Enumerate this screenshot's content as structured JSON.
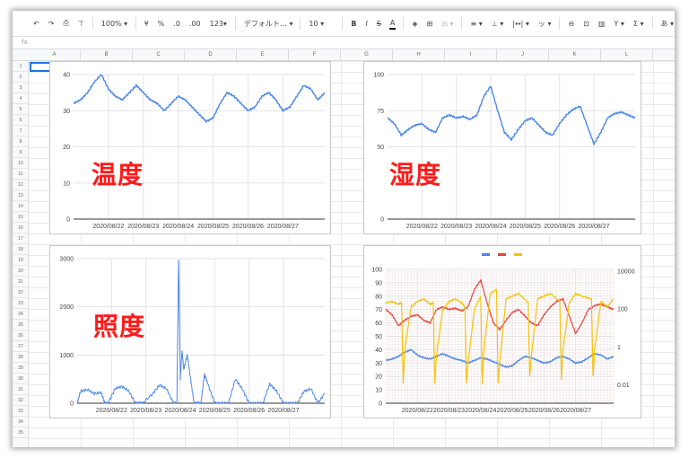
{
  "toolbar": {
    "items": [
      {
        "name": "undo-icon",
        "glyph": "↶"
      },
      {
        "name": "redo-icon",
        "glyph": "↷"
      },
      {
        "name": "print-icon",
        "glyph": "⎙"
      },
      {
        "name": "paint-format-icon",
        "glyph": "⊤"
      }
    ],
    "zoom": "100% ▾",
    "currency": "¥",
    "percent": "%",
    "decimal_dec": ".0",
    "decimal_inc": ".00",
    "number_format": "123▾",
    "font": "デフォルト… ▾",
    "font_size": "10 ▾",
    "bold": "B",
    "italic": "I",
    "strike": "S",
    "text_color": "A",
    "fill_icon": "◈",
    "borders_icon": "⊞",
    "merge_icon": "⊟ ▾",
    "align_h": "≡ ▾",
    "align_v": "⊥ ▾",
    "wrap": "|↔| ▾",
    "rotate": "ッ ▾",
    "link_icon": "⊖",
    "comment_icon": "⊡",
    "chart_icon": "▥",
    "filter_icon": "Y ▾",
    "function_icon": "Σ ▾",
    "input_tools": "あ ▾"
  },
  "formula_bar": {
    "fx": "fx"
  },
  "columns": [
    "A",
    "B",
    "C",
    "D",
    "E",
    "F",
    "G",
    "H",
    "I",
    "J",
    "K",
    "L"
  ],
  "rows": [
    "1",
    "2",
    "3",
    "4",
    "5",
    "6",
    "7",
    "8",
    "9",
    "10",
    "11",
    "12",
    "13",
    "14",
    "15",
    "16",
    "17",
    "18",
    "19",
    "20",
    "21",
    "22",
    "23",
    "24",
    "25",
    "26",
    "27",
    "28",
    "29",
    "30",
    "31",
    "32",
    "33",
    "34",
    "35"
  ],
  "chart_data": [
    {
      "type": "line",
      "title": "",
      "overlay_label": "温度",
      "x_ticks": [
        "2020/08/22",
        "2020/08/23",
        "2020/08/24",
        "2020/08/25",
        "2020/08/26",
        "2020/08/27"
      ],
      "ylim": [
        0,
        40
      ],
      "y_ticks": [
        0,
        10,
        20,
        30,
        40
      ],
      "series": [
        {
          "color": "#4a86e8",
          "x": [
            0,
            0.2,
            0.4,
            0.6,
            0.8,
            1,
            1.2,
            1.4,
            1.6,
            1.8,
            2,
            2.2,
            2.4,
            2.6,
            2.8,
            3,
            3.2,
            3.4,
            3.6,
            3.8,
            4,
            4.2,
            4.4,
            4.6,
            4.8,
            5,
            5.2,
            5.4,
            5.6,
            5.8,
            6,
            6.2,
            6.4,
            6.6,
            6.8,
            7,
            7.2
          ],
          "y": [
            32,
            33,
            35,
            38,
            40,
            36,
            34,
            33,
            35,
            37,
            35,
            33,
            32,
            30,
            32,
            34,
            33,
            31,
            29,
            27,
            28,
            32,
            35,
            34,
            32,
            30,
            31,
            34,
            35,
            33,
            30,
            31,
            34,
            37,
            36,
            33,
            35
          ]
        }
      ],
      "x_range": [
        0,
        7.2
      ],
      "x_tick_pos": [
        1,
        2,
        3,
        4,
        5,
        6
      ]
    },
    {
      "type": "line",
      "title": "",
      "overlay_label": "湿度",
      "x_ticks": [
        "2020/08/22",
        "2020/08/23",
        "2020/08/24",
        "2020/08/25",
        "2020/08/26",
        "2020/08/27"
      ],
      "ylim": [
        0,
        100
      ],
      "y_ticks": [
        0,
        50,
        75,
        100
      ],
      "y_tick_pos": [
        0,
        50,
        75,
        100
      ],
      "series": [
        {
          "color": "#4a86e8",
          "x": [
            0,
            0.2,
            0.4,
            0.6,
            0.8,
            1,
            1.2,
            1.4,
            1.6,
            1.8,
            2,
            2.2,
            2.4,
            2.6,
            2.8,
            3,
            3.2,
            3.4,
            3.6,
            3.8,
            4,
            4.2,
            4.4,
            4.6,
            4.8,
            5,
            5.2,
            5.4,
            5.6,
            5.8,
            6,
            6.2,
            6.4,
            6.6,
            6.8,
            7,
            7.2
          ],
          "y": [
            70,
            66,
            58,
            62,
            65,
            66,
            62,
            60,
            70,
            72,
            70,
            71,
            69,
            72,
            85,
            92,
            75,
            60,
            55,
            62,
            68,
            70,
            65,
            60,
            58,
            66,
            72,
            76,
            78,
            65,
            52,
            60,
            70,
            73,
            74,
            72,
            70
          ]
        }
      ],
      "x_range": [
        0,
        7.2
      ],
      "x_tick_pos": [
        1,
        2,
        3,
        4,
        5,
        6
      ]
    },
    {
      "type": "line",
      "title": "",
      "overlay_label": "照度",
      "x_ticks": [
        "2020/08/22",
        "2020/08/23",
        "2020/08/24",
        "2020/08/25",
        "2020/08/26",
        "2020/08/27"
      ],
      "ylim": [
        0,
        3000
      ],
      "y_ticks": [
        0,
        1000,
        2000,
        3000
      ],
      "series": [
        {
          "color": "#4a86e8",
          "x": [
            0,
            0.1,
            0.3,
            0.5,
            0.7,
            0.8,
            0.9,
            1.1,
            1.3,
            1.5,
            1.7,
            1.8,
            1.9,
            2.2,
            2.4,
            2.6,
            2.8,
            2.9,
            2.95,
            3.0,
            3.05,
            3.1,
            3.2,
            3.3,
            3.4,
            3.5,
            3.6,
            3.7,
            3.8,
            4.0,
            4.2,
            4.4,
            4.6,
            4.8,
            5.0,
            5.2,
            5.4,
            5.6,
            5.8,
            6.0,
            6.2,
            6.4,
            6.6,
            6.8,
            7.0,
            7.2
          ],
          "y": [
            0,
            250,
            280,
            200,
            220,
            0,
            0,
            300,
            350,
            250,
            0,
            0,
            0,
            200,
            380,
            300,
            0,
            0,
            3000,
            500,
            1100,
            700,
            1000,
            500,
            0,
            0,
            0,
            600,
            400,
            0,
            0,
            0,
            500,
            300,
            0,
            0,
            0,
            400,
            250,
            0,
            0,
            0,
            250,
            300,
            0,
            200
          ]
        }
      ],
      "x_range": [
        0,
        7.2
      ],
      "x_tick_pos": [
        1,
        2,
        3,
        4,
        5,
        6
      ]
    },
    {
      "type": "line",
      "title": "",
      "legend_position": "top",
      "legend_colors": [
        "#4a86e8",
        "#e8453c",
        "#f4c20d"
      ],
      "x_ticks": [
        "2020/08/22",
        "2020/08/23",
        "2020/08/24",
        "2020/08/25",
        "2020/08/26",
        "2020/08/27"
      ],
      "ylim": [
        0,
        100
      ],
      "y_ticks": [
        0,
        10,
        20,
        30,
        40,
        50,
        60,
        70,
        80,
        90,
        100
      ],
      "y2_scale": "log",
      "y2_ticks": [
        "10000",
        "100",
        "1",
        "0.01"
      ],
      "series": [
        {
          "color": "#4a86e8",
          "x": [
            0,
            0.2,
            0.4,
            0.6,
            0.8,
            1,
            1.2,
            1.4,
            1.6,
            1.8,
            2,
            2.2,
            2.4,
            2.6,
            2.8,
            3,
            3.2,
            3.4,
            3.6,
            3.8,
            4,
            4.2,
            4.4,
            4.6,
            4.8,
            5,
            5.2,
            5.4,
            5.6,
            5.8,
            6,
            6.2,
            6.4,
            6.6,
            6.8,
            7,
            7.2
          ],
          "y": [
            32,
            33,
            35,
            38,
            40,
            36,
            34,
            33,
            35,
            37,
            35,
            33,
            32,
            30,
            32,
            34,
            33,
            31,
            29,
            27,
            28,
            32,
            35,
            34,
            32,
            30,
            31,
            34,
            35,
            33,
            30,
            31,
            34,
            37,
            36,
            33,
            35
          ]
        },
        {
          "color": "#e8453c",
          "x": [
            0,
            0.2,
            0.4,
            0.6,
            0.8,
            1,
            1.2,
            1.4,
            1.6,
            1.8,
            2,
            2.2,
            2.4,
            2.6,
            2.8,
            3,
            3.2,
            3.4,
            3.6,
            3.8,
            4,
            4.2,
            4.4,
            4.6,
            4.8,
            5,
            5.2,
            5.4,
            5.6,
            5.8,
            6,
            6.2,
            6.4,
            6.6,
            6.8,
            7,
            7.2
          ],
          "y": [
            70,
            66,
            58,
            62,
            65,
            66,
            62,
            60,
            70,
            72,
            70,
            71,
            69,
            72,
            85,
            92,
            75,
            60,
            55,
            62,
            68,
            70,
            65,
            60,
            58,
            66,
            72,
            76,
            78,
            65,
            52,
            60,
            70,
            73,
            74,
            72,
            70
          ]
        },
        {
          "color": "#f4c20d",
          "x": [
            0,
            0.2,
            0.4,
            0.5,
            0.55,
            0.6,
            0.8,
            1.0,
            1.2,
            1.4,
            1.5,
            1.55,
            1.6,
            1.8,
            2.0,
            2.2,
            2.4,
            2.5,
            2.55,
            2.6,
            2.8,
            3.0,
            3.05,
            3.1,
            3.3,
            3.5,
            3.55,
            3.6,
            3.8,
            4.0,
            4.2,
            4.5,
            4.55,
            4.6,
            4.8,
            5.0,
            5.2,
            5.5,
            5.55,
            5.6,
            5.8,
            6.0,
            6.2,
            6.5,
            6.55,
            6.6,
            6.8,
            7.0,
            7.2
          ],
          "y": [
            75,
            76,
            74,
            75,
            15,
            40,
            72,
            76,
            78,
            74,
            75,
            15,
            35,
            70,
            76,
            78,
            75,
            72,
            15,
            30,
            70,
            80,
            15,
            40,
            82,
            85,
            15,
            30,
            78,
            80,
            82,
            75,
            20,
            35,
            78,
            80,
            82,
            76,
            18,
            40,
            75,
            82,
            80,
            78,
            20,
            40,
            76,
            72,
            78
          ]
        }
      ],
      "x_range": [
        0,
        7.2
      ],
      "x_tick_pos": [
        1,
        2,
        3,
        4,
        5,
        6
      ]
    }
  ]
}
